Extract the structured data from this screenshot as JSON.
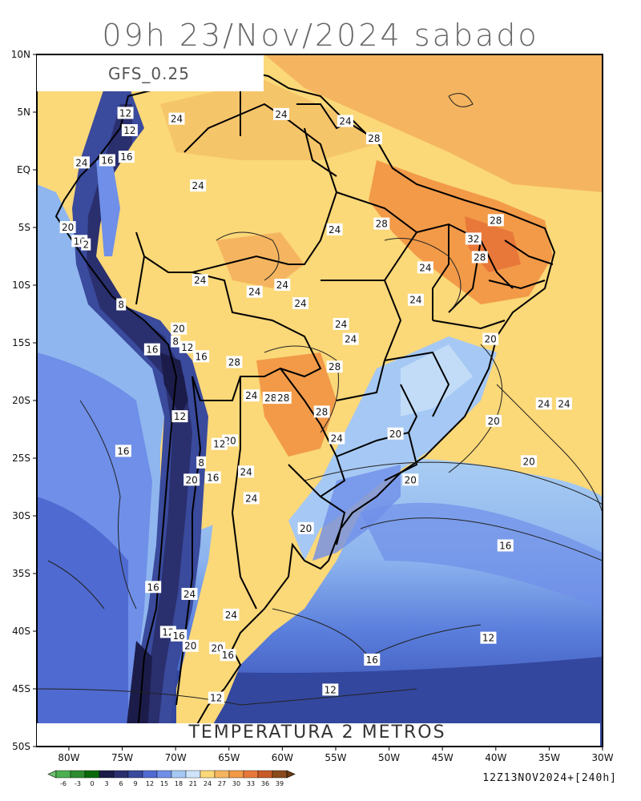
{
  "title": "09h 23/Nov/2024 sabado",
  "model_label": "GFS_0.25",
  "variable_label": "TEMPERATURA 2 METROS",
  "run_label": "12Z13NOV2024+[240h]",
  "lat_ticks": [
    "10N",
    "5N",
    "EQ",
    "5S",
    "10S",
    "15S",
    "20S",
    "25S",
    "30S",
    "35S",
    "40S",
    "45S",
    "50S"
  ],
  "lon_ticks": [
    "80W",
    "75W",
    "70W",
    "65W",
    "60W",
    "55W",
    "50W",
    "45W",
    "40W",
    "35W",
    "30W"
  ],
  "colorbar": {
    "labels": [
      "-6",
      "-3",
      "0",
      "3",
      "6",
      "9",
      "12",
      "15",
      "18",
      "21",
      "24",
      "27",
      "30",
      "33",
      "36",
      "39"
    ],
    "colors": [
      "#4caf50",
      "#2e8b2e",
      "#0a6a0a",
      "#1c1c4a",
      "#2a2f6e",
      "#3a4a9c",
      "#4f6ad0",
      "#6f8fe8",
      "#a6c8f4",
      "#cfe4fa",
      "#fbd878",
      "#f5b560",
      "#f29a48",
      "#e8783a",
      "#c85a28",
      "#8a4a1c"
    ],
    "under_color": "#6ec46e",
    "over_color": "#6b3a10"
  },
  "contour_labels": [
    {
      "text": "12",
      "lon": -74.7,
      "lat": 4.9
    },
    {
      "text": "24",
      "lon": -69.9,
      "lat": 4.4
    },
    {
      "text": "24",
      "lon": -60.1,
      "lat": 4.8
    },
    {
      "text": "24",
      "lon": -54.1,
      "lat": 4.2
    },
    {
      "text": "12",
      "lon": -74.3,
      "lat": 3.4
    },
    {
      "text": "16",
      "lon": -74.6,
      "lat": 1.1
    },
    {
      "text": "16",
      "lon": -76.4,
      "lat": 0.8
    },
    {
      "text": "24",
      "lon": -78.8,
      "lat": 0.6
    },
    {
      "text": "28",
      "lon": -51.4,
      "lat": 2.7
    },
    {
      "text": "24",
      "lon": -67.9,
      "lat": -1.4
    },
    {
      "text": "28",
      "lon": -50.7,
      "lat": -4.7
    },
    {
      "text": "28",
      "lon": -40.0,
      "lat": -4.4
    },
    {
      "text": "20",
      "lon": -80.1,
      "lat": -5.0
    },
    {
      "text": "24",
      "lon": -55.1,
      "lat": -5.2
    },
    {
      "text": "16",
      "lon": -79.0,
      "lat": -6.2
    },
    {
      "text": "2",
      "lon": -78.4,
      "lat": -6.5
    },
    {
      "text": "32",
      "lon": -42.1,
      "lat": -6.0
    },
    {
      "text": "28",
      "lon": -41.5,
      "lat": -7.6
    },
    {
      "text": "24",
      "lon": -46.6,
      "lat": -8.5
    },
    {
      "text": "24",
      "lon": -67.7,
      "lat": -9.6
    },
    {
      "text": "24",
      "lon": -60.0,
      "lat": -10.0
    },
    {
      "text": "24",
      "lon": -62.6,
      "lat": -10.6
    },
    {
      "text": "24",
      "lon": -58.3,
      "lat": -11.6
    },
    {
      "text": "24",
      "lon": -47.5,
      "lat": -11.3
    },
    {
      "text": "8",
      "lon": -75.1,
      "lat": -11.7
    },
    {
      "text": "24",
      "lon": -54.5,
      "lat": -13.4
    },
    {
      "text": "20",
      "lon": -69.7,
      "lat": -13.8
    },
    {
      "text": "24",
      "lon": -53.6,
      "lat": -14.7
    },
    {
      "text": "8",
      "lon": -70.0,
      "lat": -14.9
    },
    {
      "text": "12",
      "lon": -68.9,
      "lat": -15.4
    },
    {
      "text": "20",
      "lon": -40.5,
      "lat": -14.7
    },
    {
      "text": "16",
      "lon": -72.2,
      "lat": -15.6
    },
    {
      "text": "16",
      "lon": -67.6,
      "lat": -16.2
    },
    {
      "text": "28",
      "lon": -64.5,
      "lat": -16.7
    },
    {
      "text": "28",
      "lon": -55.1,
      "lat": -17.1
    },
    {
      "text": "24",
      "lon": -62.9,
      "lat": -19.6
    },
    {
      "text": "28",
      "lon": -61.1,
      "lat": -19.8
    },
    {
      "text": "28",
      "lon": -59.9,
      "lat": -19.8
    },
    {
      "text": "24",
      "lon": -35.5,
      "lat": -20.3
    },
    {
      "text": "24",
      "lon": -33.6,
      "lat": -20.3
    },
    {
      "text": "12",
      "lon": -69.6,
      "lat": -21.4
    },
    {
      "text": "28",
      "lon": -56.3,
      "lat": -21.0
    },
    {
      "text": "20",
      "lon": -40.2,
      "lat": -21.8
    },
    {
      "text": "20",
      "lon": -49.4,
      "lat": -22.9
    },
    {
      "text": "24",
      "lon": -54.9,
      "lat": -23.3
    },
    {
      "text": "20",
      "lon": -64.9,
      "lat": -23.5
    },
    {
      "text": "12",
      "lon": -65.9,
      "lat": -23.8
    },
    {
      "text": "16",
      "lon": -74.9,
      "lat": -24.4
    },
    {
      "text": "8",
      "lon": -67.6,
      "lat": -25.4
    },
    {
      "text": "20",
      "lon": -36.9,
      "lat": -25.3
    },
    {
      "text": "24",
      "lon": -63.4,
      "lat": -26.2
    },
    {
      "text": "16",
      "lon": -66.5,
      "lat": -26.7
    },
    {
      "text": "20",
      "lon": -68.5,
      "lat": -26.9
    },
    {
      "text": "20",
      "lon": -48.0,
      "lat": -26.9
    },
    {
      "text": "24",
      "lon": -62.9,
      "lat": -28.5
    },
    {
      "text": "20",
      "lon": -57.8,
      "lat": -31.1
    },
    {
      "text": "16",
      "lon": -39.1,
      "lat": -32.6
    },
    {
      "text": "16",
      "lon": -72.1,
      "lat": -36.2
    },
    {
      "text": "24",
      "lon": -68.7,
      "lat": -36.8
    },
    {
      "text": "24",
      "lon": -64.8,
      "lat": -38.6
    },
    {
      "text": "12",
      "lon": -70.7,
      "lat": -40.1
    },
    {
      "text": "16",
      "lon": -69.7,
      "lat": -40.4
    },
    {
      "text": "20",
      "lon": -68.6,
      "lat": -41.3
    },
    {
      "text": "12",
      "lon": -40.7,
      "lat": -40.6
    },
    {
      "text": "20",
      "lon": -66.1,
      "lat": -41.5
    },
    {
      "text": "16",
      "lon": -65.1,
      "lat": -42.1
    },
    {
      "text": "16",
      "lon": -51.6,
      "lat": -42.5
    },
    {
      "text": "12",
      "lon": -55.5,
      "lat": -45.1
    },
    {
      "text": "12",
      "lon": -66.2,
      "lat": -45.8
    }
  ]
}
